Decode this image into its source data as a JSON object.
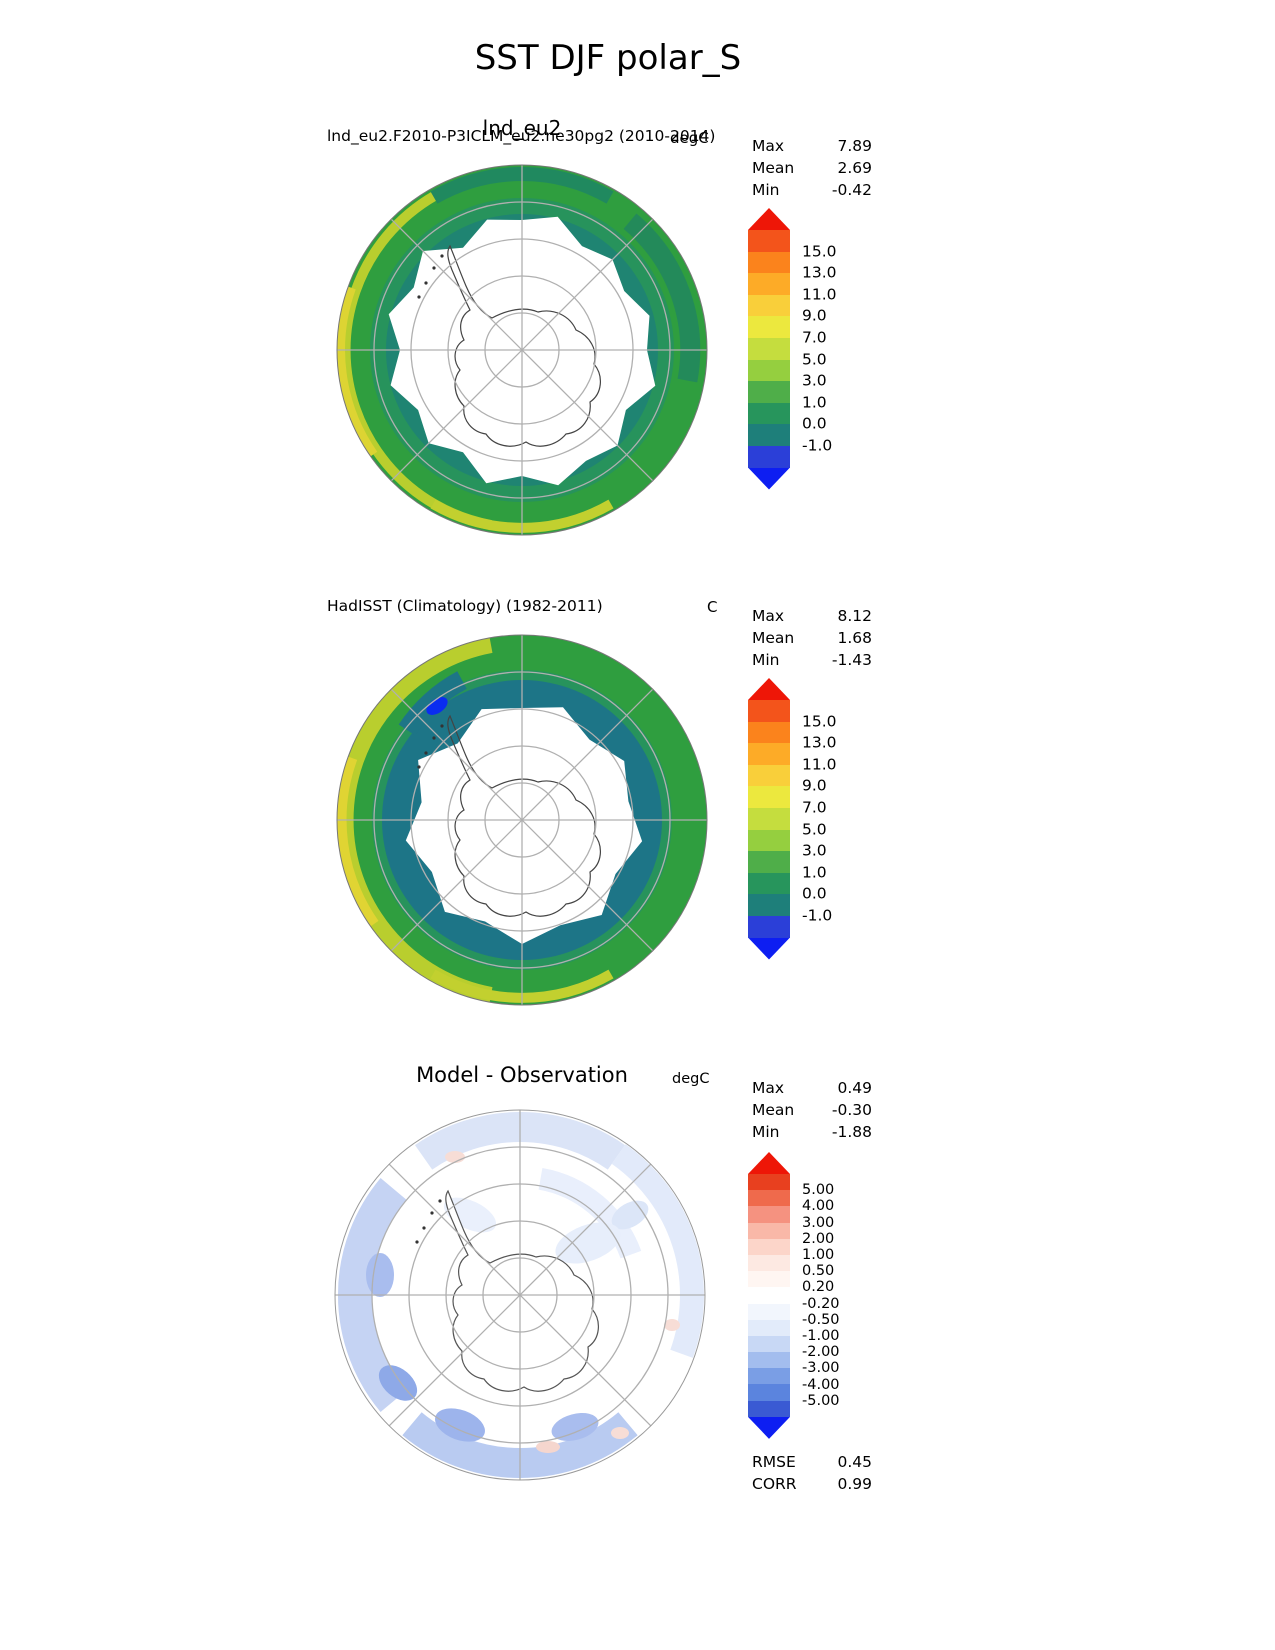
{
  "page": {
    "title": "SST DJF polar_S"
  },
  "panels": [
    {
      "name": "model",
      "title": "lnd_eu2.F2010-P3ICLM_eu2.ne30pg2 (2010-2014)",
      "subtitle": "lnd_eu2",
      "units": "degC",
      "stats": [
        {
          "label": "Max",
          "value": "7.89"
        },
        {
          "label": "Mean",
          "value": "2.69"
        },
        {
          "label": "Min",
          "value": "-0.42"
        }
      ],
      "colorbar": {
        "labels": [
          "15.0",
          "13.0",
          "11.0",
          "9.0",
          "7.0",
          "5.0",
          "3.0",
          "1.0",
          "0.0",
          "-1.0"
        ],
        "colors": [
          "#f3541b",
          "#fb831c",
          "#fdab27",
          "#f9cf3a",
          "#ece83e",
          "#c5dd3e",
          "#95cf3f",
          "#4fae49",
          "#27955c",
          "#1e7f7a",
          "#2b3fd8"
        ],
        "arrow_top": "#ee1607",
        "arrow_bottom": "#0d1ef2"
      }
    },
    {
      "name": "observation",
      "title": "HadISST (Climatology) (1982-2011)",
      "units": "C",
      "stats": [
        {
          "label": "Max",
          "value": "8.12"
        },
        {
          "label": "Mean",
          "value": "1.68"
        },
        {
          "label": "Min",
          "value": "-1.43"
        }
      ],
      "colorbar": {
        "labels": [
          "15.0",
          "13.0",
          "11.0",
          "9.0",
          "7.0",
          "5.0",
          "3.0",
          "1.0",
          "0.0",
          "-1.0"
        ],
        "colors": [
          "#f3541b",
          "#fb831c",
          "#fdab27",
          "#f9cf3a",
          "#ece83e",
          "#c5dd3e",
          "#95cf3f",
          "#4fae49",
          "#27955c",
          "#1e7f7a",
          "#2b3fd8"
        ],
        "arrow_top": "#ee1607",
        "arrow_bottom": "#0d1ef2"
      }
    },
    {
      "name": "difference",
      "title": "Model - Observation",
      "units": "degC",
      "stats": [
        {
          "label": "Max",
          "value": "0.49"
        },
        {
          "label": "Mean",
          "value": "-0.30"
        },
        {
          "label": "Min",
          "value": "-1.88"
        }
      ],
      "extra_stats": [
        {
          "label": "RMSE",
          "value": "0.45"
        },
        {
          "label": "CORR",
          "value": "0.99"
        }
      ],
      "colorbar": {
        "labels": [
          "5.00",
          "4.00",
          "3.00",
          "2.00",
          "1.00",
          "0.50",
          "0.20",
          "-0.20",
          "-0.50",
          "-1.00",
          "-2.00",
          "-3.00",
          "-4.00",
          "-5.00"
        ],
        "colors": [
          "#e8401f",
          "#ef6a4c",
          "#f59280",
          "#f9b8a8",
          "#fcd5c9",
          "#fde9e2",
          "#fff6f2",
          "#ffffff",
          "#f2f6fd",
          "#e2ebfa",
          "#c8d8f5",
          "#a3bdee",
          "#7a9ee5",
          "#5b84de",
          "#3a5ad3"
        ],
        "arrow_top": "#ee1607",
        "arrow_bottom": "#0d1ef2"
      }
    }
  ],
  "chart_data": [
    {
      "type": "heatmap",
      "projection": "south-polar-stereographic",
      "variable": "SST",
      "season": "DJF",
      "region": "polar_S",
      "title": "lnd_eu2.F2010-P3ICLM_eu2.ne30pg2 (2010-2014)",
      "units": "degC",
      "stats": {
        "max": 7.89,
        "mean": 2.69,
        "min": -0.42
      },
      "contour_levels": [
        -1.0,
        0.0,
        1.0,
        3.0,
        5.0,
        7.0,
        9.0,
        11.0,
        13.0,
        15.0
      ],
      "palette": [
        "#2b3fd8",
        "#1e7f7a",
        "#27955c",
        "#4fae49",
        "#95cf3f",
        "#c5dd3e",
        "#ece83e",
        "#f9cf3a",
        "#fdab27",
        "#fb831c",
        "#f3541b"
      ],
      "legend_position": "right",
      "grid": true
    },
    {
      "type": "heatmap",
      "projection": "south-polar-stereographic",
      "variable": "SST",
      "season": "DJF",
      "region": "polar_S",
      "title": "HadISST (Climatology) (1982-2011)",
      "units": "C",
      "stats": {
        "max": 8.12,
        "mean": 1.68,
        "min": -1.43
      },
      "contour_levels": [
        -1.0,
        0.0,
        1.0,
        3.0,
        5.0,
        7.0,
        9.0,
        11.0,
        13.0,
        15.0
      ],
      "palette": [
        "#2b3fd8",
        "#1e7f7a",
        "#27955c",
        "#4fae49",
        "#95cf3f",
        "#c5dd3e",
        "#ece83e",
        "#f9cf3a",
        "#fdab27",
        "#fb831c",
        "#f3541b"
      ],
      "legend_position": "right",
      "grid": true
    },
    {
      "type": "heatmap",
      "projection": "south-polar-stereographic",
      "variable": "SST difference",
      "season": "DJF",
      "region": "polar_S",
      "title": "Model - Observation",
      "units": "degC",
      "stats": {
        "max": 0.49,
        "mean": -0.3,
        "min": -1.88,
        "rmse": 0.45,
        "corr": 0.99
      },
      "contour_levels": [
        -5.0,
        -4.0,
        -3.0,
        -2.0,
        -1.0,
        -0.5,
        -0.2,
        0.2,
        0.5,
        1.0,
        2.0,
        3.0,
        4.0,
        5.0
      ],
      "palette": [
        "#3a5ad3",
        "#5b84de",
        "#7a9ee5",
        "#a3bdee",
        "#c8d8f5",
        "#e2ebfa",
        "#f2f6fd",
        "#ffffff",
        "#fff6f2",
        "#fde9e2",
        "#fcd5c9",
        "#f9b8a8",
        "#f59280",
        "#ef6a4c",
        "#e8401f"
      ],
      "legend_position": "right",
      "grid": true
    }
  ]
}
